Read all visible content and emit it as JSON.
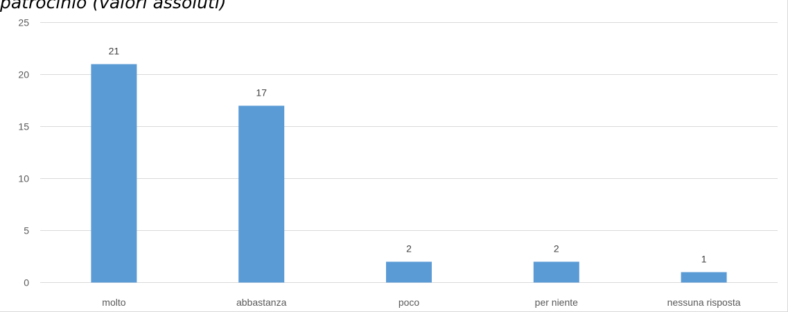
{
  "chart_data": {
    "type": "bar",
    "title": "patrocinio (valori assoluti)",
    "categories": [
      "molto",
      "abbastanza",
      "poco",
      "per niente",
      "nessuna risposta"
    ],
    "values": [
      21,
      17,
      2,
      2,
      1
    ],
    "ylim": [
      0,
      25
    ],
    "yticks": [
      0,
      5,
      10,
      15,
      20,
      25
    ],
    "xlabel": "",
    "ylabel": "",
    "grid": true,
    "legend": "none",
    "bar_color": "#5b9bd5",
    "grid_color": "#d9d9d9"
  }
}
